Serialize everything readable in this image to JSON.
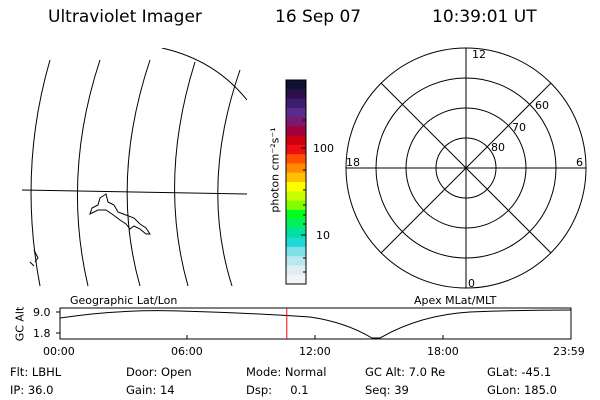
{
  "header": {
    "title": "Ultraviolet Imager",
    "date": "16 Sep 07",
    "time": "10:39:01 UT"
  },
  "colorbar": {
    "unit_label": "photon cm⁻²s⁻¹",
    "ticks": [
      "100",
      "10"
    ],
    "colors": [
      "#101030",
      "#2a0f4a",
      "#3c1e6e",
      "#5a2a8c",
      "#7a1a6a",
      "#a0003c",
      "#cc0010",
      "#ee1010",
      "#ff5000",
      "#ff8c00",
      "#ffc000",
      "#ffff00",
      "#c8ff00",
      "#80ff00",
      "#00ff20",
      "#00f060",
      "#00e0a0",
      "#20d8d8",
      "#80e0e8",
      "#b8e8f0",
      "#e0eef4",
      "#f2f4f6"
    ]
  },
  "left_map": {
    "label": "Geographic Lat/Lon"
  },
  "right_map": {
    "label": "Apex MLat/MLT",
    "mlt_labels": [
      "12",
      "18",
      "6",
      "0"
    ],
    "lat_labels": [
      "60",
      "70",
      "80"
    ]
  },
  "timeline": {
    "ylabel": "GC Alt",
    "ytick_top": "9.0",
    "ytick_bottom": "1.8",
    "xticks": [
      "00:00",
      "06:00",
      "12:00",
      "18:00",
      "23:59"
    ],
    "current_time_fraction": 0.4438,
    "colors": {
      "marker": "#ff0000"
    }
  },
  "footer": {
    "flt": "Flt: LBHL",
    "ip": "IP: 36.0",
    "door": "Door: Open",
    "gain": "Gain: 14",
    "mode": "Mode: Normal",
    "dsp": "Dsp:     0.1",
    "gcalt": "GC Alt: 7.0 Re",
    "seq": "Seq: 39",
    "glat": "GLat: -45.1",
    "glon": "GLon: 185.0"
  }
}
